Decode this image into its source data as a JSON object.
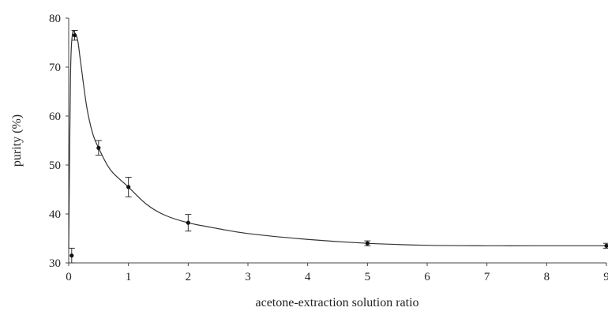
{
  "chart_data": {
    "type": "scatter",
    "title": "",
    "xlabel": "acetone-extraction solution ratio",
    "ylabel": "purity (%)",
    "xlim": [
      0,
      9
    ],
    "ylim": [
      30,
      80
    ],
    "x_ticks": [
      0,
      1,
      2,
      3,
      4,
      5,
      6,
      7,
      8,
      9
    ],
    "y_ticks": [
      30,
      40,
      50,
      60,
      70,
      80
    ],
    "grid": false,
    "legend": "none",
    "series": [
      {
        "points": [
          {
            "x": 0.05,
            "y": 31.5,
            "err": 1.5
          },
          {
            "x": 0.1,
            "y": 76.5,
            "err": 1.0
          },
          {
            "x": 0.5,
            "y": 53.5,
            "err": 1.5
          },
          {
            "x": 1,
            "y": 45.5,
            "err": 2.0
          },
          {
            "x": 2,
            "y": 38.2,
            "err": 1.7
          },
          {
            "x": 5,
            "y": 34.0,
            "err": 0.5
          },
          {
            "x": 9,
            "y": 33.5,
            "err": 0.5
          }
        ]
      }
    ],
    "fit_curve": {
      "x": [
        0,
        0.03,
        0.06,
        0.1,
        0.15,
        0.2,
        0.3,
        0.4,
        0.5,
        0.7,
        1,
        1.3,
        1.6,
        2,
        2.5,
        3,
        4,
        5,
        6,
        7,
        8,
        9
      ],
      "y": [
        33.0,
        68.0,
        76.5,
        77.0,
        75.5,
        71.0,
        62.0,
        56.5,
        53.5,
        49.0,
        45.5,
        42.0,
        39.8,
        38.2,
        37.0,
        36.0,
        34.8,
        34.0,
        33.6,
        33.5,
        33.5,
        33.5
      ]
    }
  }
}
